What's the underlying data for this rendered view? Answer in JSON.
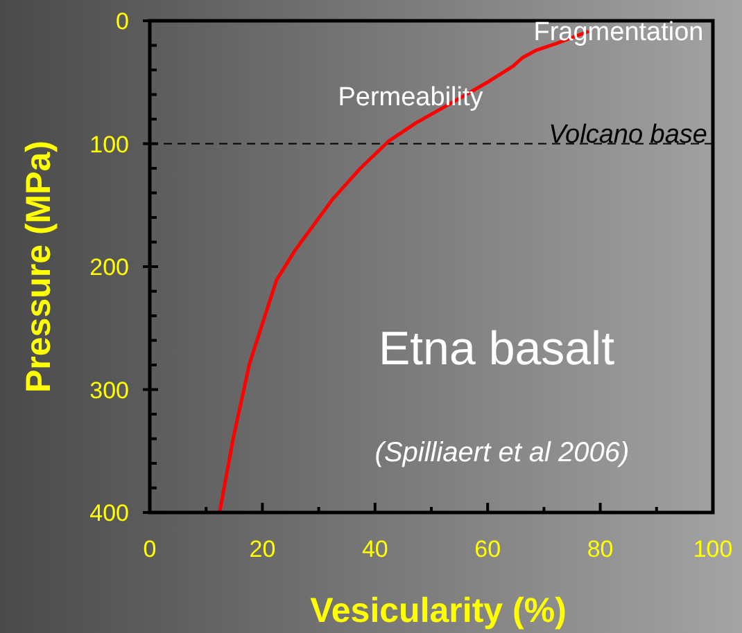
{
  "chart_data": {
    "type": "line",
    "xlabel": "Vesicularity (%)",
    "ylabel": "Pressure (MPa)",
    "xlim": [
      0,
      100
    ],
    "ylim": [
      400,
      0
    ],
    "xticks": [
      0,
      {
        "value": 10,
        "label": null
      },
      20,
      {
        "value": 30,
        "label": null
      },
      40,
      {
        "value": 50,
        "label": null
      },
      60,
      {
        "value": 70,
        "label": null
      },
      80,
      {
        "value": 90,
        "label": null
      },
      100
    ],
    "yticks": [
      0,
      {
        "value": 20,
        "label": null
      },
      {
        "value": 40,
        "label": null
      },
      {
        "value": 60,
        "label": null
      },
      {
        "value": 80,
        "label": null
      },
      100,
      {
        "value": 120,
        "label": null
      },
      {
        "value": 140,
        "label": null
      },
      {
        "value": 160,
        "label": null
      },
      {
        "value": 180,
        "label": null
      },
      200,
      {
        "value": 220,
        "label": null
      },
      {
        "value": 240,
        "label": null
      },
      {
        "value": 260,
        "label": null
      },
      {
        "value": 280,
        "label": null
      },
      300,
      {
        "value": 320,
        "label": null
      },
      {
        "value": 340,
        "label": null
      },
      {
        "value": 360,
        "label": null
      },
      {
        "value": 380,
        "label": null
      },
      400
    ],
    "grid": false,
    "marker": "none",
    "line_style": "solid",
    "series": [
      {
        "color": "#ff0000",
        "x": [
          12.4,
          14.8,
          17.7,
          22.5,
          25.9,
          32.5,
          37.4,
          42.4,
          47.3,
          53.9,
          59.6,
          64.5,
          66.2,
          68.6,
          71.9,
          77.7
        ],
        "values": [
          400,
          340,
          279,
          211,
          186,
          145,
          120,
          98,
          83,
          66,
          51,
          37,
          30,
          24,
          19,
          9
        ]
      }
    ],
    "ref_lines": [
      {
        "axis": "y",
        "value": 100,
        "label": "Volcano base",
        "color": "#000000",
        "line_style": "dashed"
      }
    ],
    "annotations": [
      "Fragmentation",
      "Permeability",
      "Etna basalt",
      "(Spilliaert et al 2006)"
    ]
  }
}
